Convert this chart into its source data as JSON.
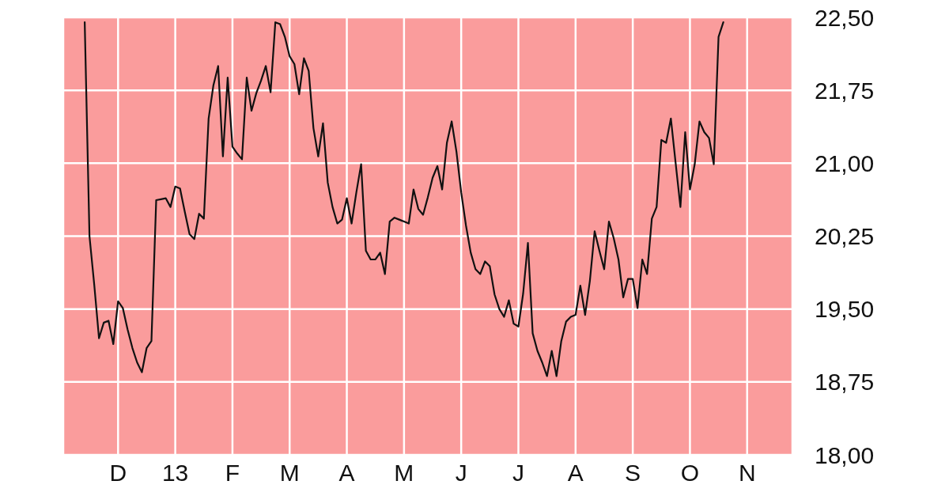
{
  "chart_data": {
    "type": "line",
    "categories": [
      null,
      null,
      null,
      null,
      null,
      null,
      null,
      null,
      null,
      null,
      null,
      "D",
      null,
      null,
      null,
      null,
      null,
      null,
      null,
      null,
      null,
      null,
      null,
      "13",
      null,
      null,
      null,
      null,
      null,
      null,
      null,
      null,
      null,
      null,
      null,
      "F",
      null,
      null,
      null,
      null,
      null,
      null,
      null,
      null,
      null,
      null,
      null,
      "M",
      null,
      null,
      null,
      null,
      null,
      null,
      null,
      null,
      null,
      null,
      null,
      "A",
      null,
      null,
      null,
      null,
      null,
      null,
      null,
      null,
      null,
      null,
      null,
      "M",
      null,
      null,
      null,
      null,
      null,
      null,
      null,
      null,
      null,
      null,
      null,
      "J",
      null,
      null,
      null,
      null,
      null,
      null,
      null,
      null,
      null,
      null,
      null,
      "J",
      null,
      null,
      null,
      null,
      null,
      null,
      null,
      null,
      null,
      null,
      null,
      "A",
      null,
      null,
      null,
      null,
      null,
      null,
      null,
      null,
      null,
      null,
      null,
      "S",
      null,
      null,
      null,
      null,
      null,
      null,
      null,
      null,
      null,
      null,
      null,
      "O",
      null,
      null,
      null,
      null,
      null,
      null,
      null,
      null,
      null,
      null,
      null,
      "N",
      null,
      null,
      null,
      null,
      null,
      null,
      null,
      null,
      null
    ],
    "series": [
      {
        "color": "#111111",
        "values": [
          null,
          null,
          null,
          null,
          22.45,
          20.25,
          19.75,
          19.2,
          19.36,
          19.38,
          19.14,
          19.58,
          19.51,
          19.29,
          19.1,
          18.95,
          18.85,
          19.1,
          19.17,
          20.62,
          20.63,
          20.64,
          20.55,
          20.76,
          20.74,
          20.5,
          20.27,
          20.22,
          20.48,
          20.43,
          21.46,
          21.8,
          22.0,
          21.07,
          21.88,
          21.17,
          21.1,
          21.04,
          21.88,
          21.54,
          21.72,
          21.85,
          22.0,
          21.73,
          22.45,
          22.43,
          22.3,
          22.1,
          22.02,
          21.71,
          22.08,
          21.95,
          21.36,
          21.07,
          21.41,
          20.8,
          20.55,
          20.38,
          20.42,
          20.64,
          20.38,
          20.7,
          20.99,
          20.1,
          20.01,
          20.01,
          20.08,
          19.86,
          20.4,
          20.44,
          20.42,
          20.4,
          20.38,
          20.73,
          20.53,
          20.47,
          20.65,
          20.85,
          20.97,
          20.73,
          21.21,
          21.43,
          21.12,
          20.7,
          20.36,
          20.08,
          19.91,
          19.86,
          19.99,
          19.94,
          19.65,
          19.5,
          19.42,
          19.59,
          19.35,
          19.32,
          19.66,
          20.18,
          19.25,
          19.07,
          18.95,
          18.81,
          19.07,
          18.81,
          19.17,
          19.37,
          19.42,
          19.44,
          19.74,
          19.44,
          19.79,
          20.3,
          20.1,
          19.91,
          20.4,
          20.23,
          20.01,
          19.62,
          19.81,
          19.81,
          19.51,
          20.01,
          19.86,
          20.43,
          20.55,
          21.24,
          21.21,
          21.46,
          21.0,
          20.55,
          21.32,
          20.73,
          20.99,
          21.43,
          21.32,
          21.26,
          20.99,
          22.3,
          22.45,
          null,
          null,
          null,
          null,
          null,
          null,
          null,
          null,
          null,
          null,
          null,
          null,
          null,
          null
        ]
      }
    ],
    "ylim": [
      18,
      22.5
    ],
    "yticks": [
      {
        "value": 18,
        "label": "18,00"
      },
      {
        "value": 18.75,
        "label": "18,75"
      },
      {
        "value": 19.5,
        "label": "19,50"
      },
      {
        "value": 20.25,
        "label": "20,25"
      },
      {
        "value": 21,
        "label": "21,00"
      },
      {
        "value": 21.75,
        "label": "21,75"
      },
      {
        "value": 22.5,
        "label": "22,50"
      }
    ],
    "grid": true
  }
}
